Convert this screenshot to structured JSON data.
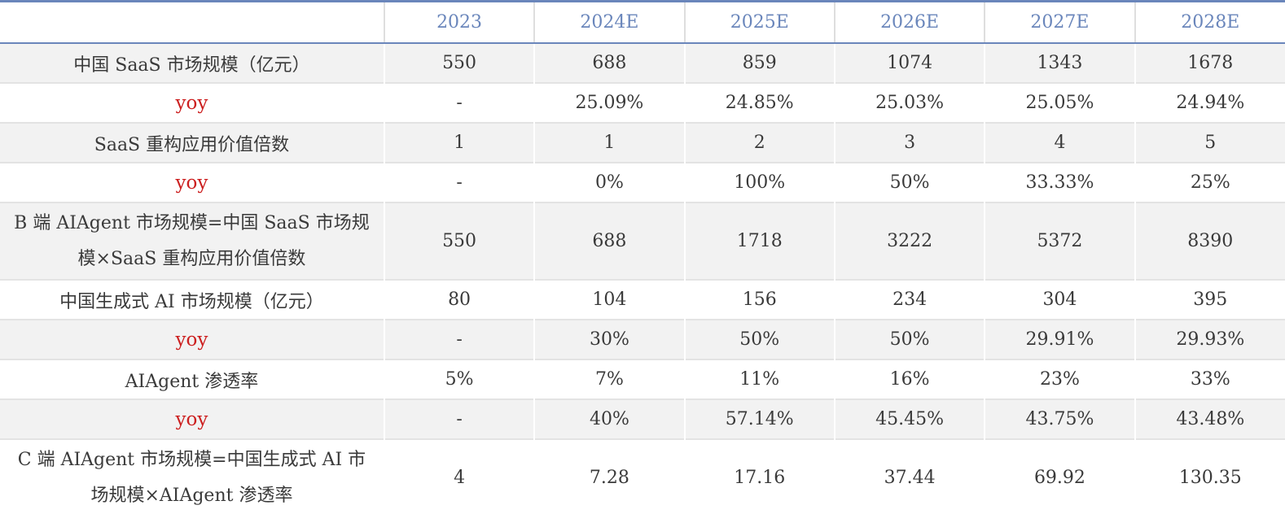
{
  "header": [
    "",
    "2023",
    "2024E",
    "2025E",
    "2026E",
    "2027E",
    "2028E"
  ],
  "rows": [
    {
      "label": "中国 SaaS 市场规模（亿元）",
      "values": [
        "550",
        "688",
        "859",
        "1074",
        "1343",
        "1678"
      ]
    },
    {
      "label": "yoy",
      "values": [
        "-",
        "25.09%",
        "24.85%",
        "25.03%",
        "25.05%",
        "24.94%"
      ]
    },
    {
      "label": "SaaS 重构应用价值倍数",
      "values": [
        "1",
        "1",
        "2",
        "3",
        "4",
        "5"
      ]
    },
    {
      "label": "yoy",
      "values": [
        "-",
        "0%",
        "100%",
        "50%",
        "33.33%",
        "25%"
      ]
    },
    {
      "label": "B 端 AIAgent 市场规模=中国 SaaS 市场规模×SaaS 重构应用价值倍数",
      "values": [
        "550",
        "688",
        "1718",
        "3222",
        "5372",
        "8390"
      ]
    },
    {
      "label": "中国生成式 AI 市场规模（亿元）",
      "values": [
        "80",
        "104",
        "156",
        "234",
        "304",
        "395"
      ]
    },
    {
      "label": "yoy",
      "values": [
        "-",
        "30%",
        "50%",
        "50%",
        "29.91%",
        "29.93%"
      ]
    },
    {
      "label": "AIAgent 渗透率",
      "values": [
        "5%",
        "7%",
        "11%",
        "16%",
        "23%",
        "33%"
      ]
    },
    {
      "label": "yoy",
      "values": [
        "-",
        "40%",
        "57.14%",
        "45.45%",
        "43.75%",
        "43.48%"
      ]
    },
    {
      "label": "C 端 AIAgent 市场规模=中国生成式 AI 市场规模×AIAgent 渗透率",
      "values": [
        "4",
        "7.28",
        "17.16",
        "37.44",
        "69.92",
        "130.35"
      ]
    }
  ],
  "colors": {
    "header_text": "#6a86bb",
    "yoy_text": "#cc1f1f",
    "band": "#f2f2f2"
  }
}
